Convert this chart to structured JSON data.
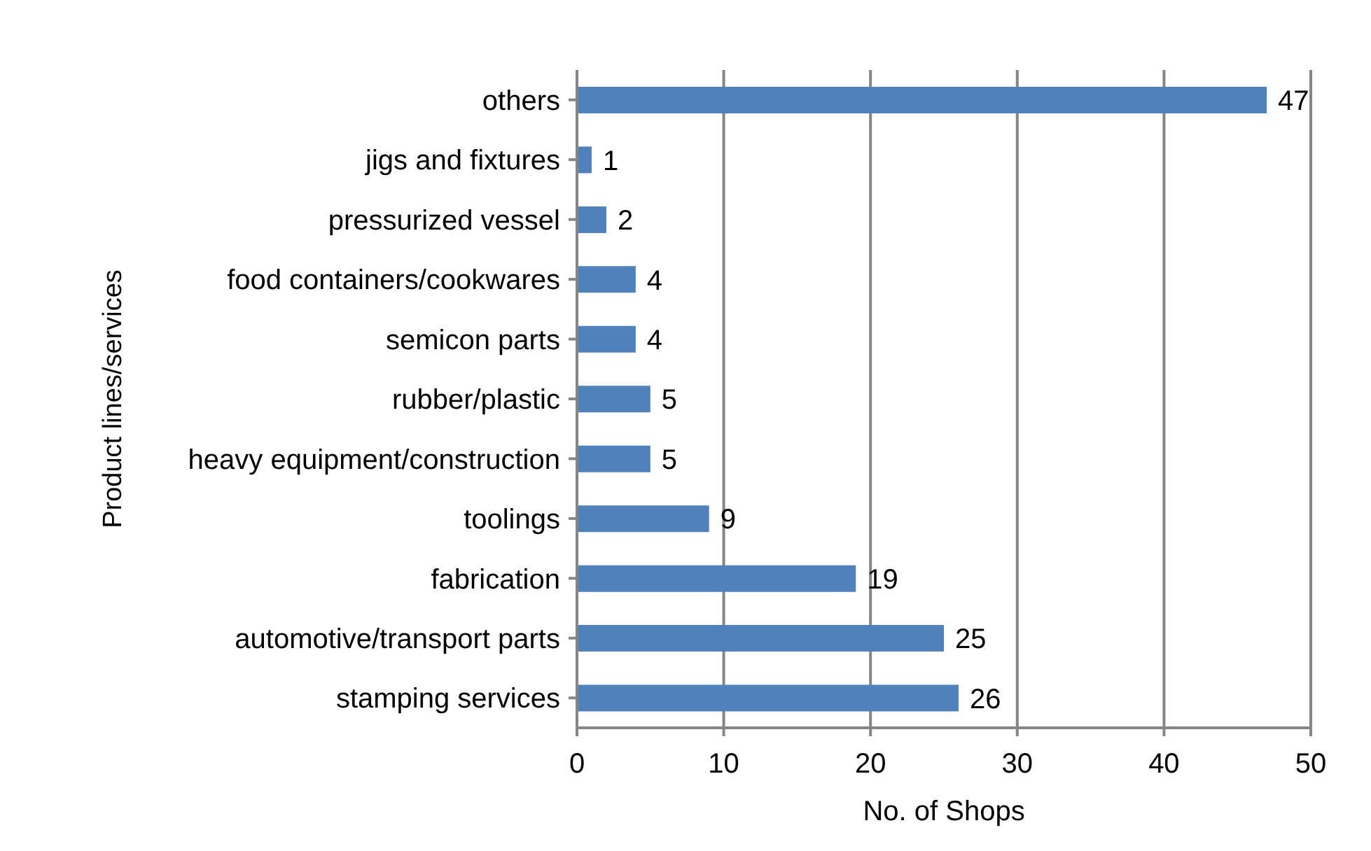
{
  "chart_data": {
    "type": "bar",
    "orientation": "horizontal",
    "xlabel": "No. of Shops",
    "ylabel": "Product lines/services",
    "categories": [
      "others",
      "jigs and fixtures",
      "pressurized vessel",
      "food containers/cookwares",
      "semicon parts",
      "rubber/plastic",
      "heavy equipment/construction",
      "toolings",
      "fabrication",
      "automotive/transport parts",
      "stamping services"
    ],
    "values": [
      47,
      1,
      2,
      4,
      4,
      5,
      5,
      9,
      19,
      25,
      26
    ],
    "color": "#4f81bd",
    "xlim": [
      0,
      50
    ],
    "xticks": [
      0,
      10,
      20,
      30,
      40,
      50
    ],
    "grid": "x",
    "data_labels": true
  }
}
